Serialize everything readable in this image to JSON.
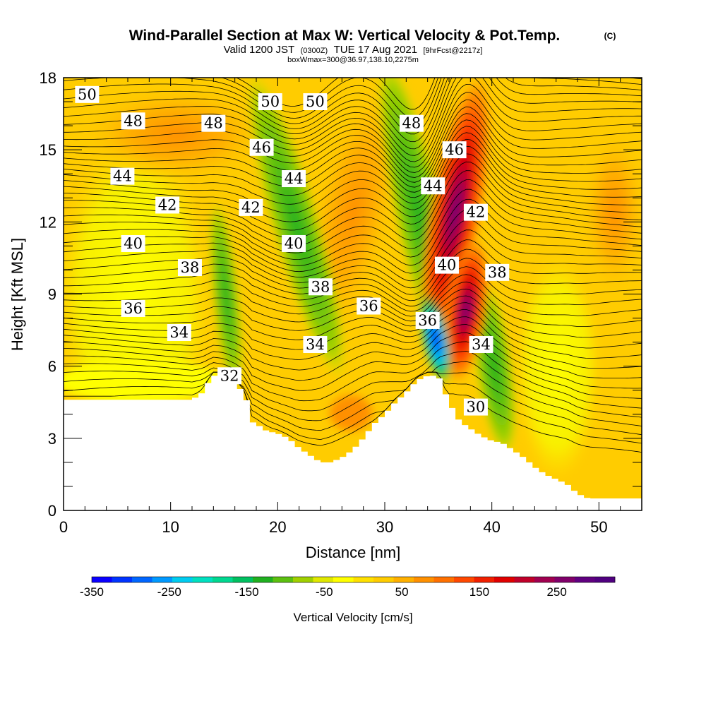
{
  "title": {
    "main": "Wind-Parallel Section at Max W: Vertical Velocity & Pot.Temp.",
    "copyright": "(C)",
    "valid_prefix": "Valid 1200 JST",
    "valid_utc": "(0300Z)",
    "valid_date": "TUE 17 Aug 2021",
    "forecast": "[9hrFcst@2217z]",
    "box": "boxWmax=300@36.97,138.10,2275m"
  },
  "chart_data": {
    "type": "heatmap",
    "xlabel": "Distance [nm]",
    "ylabel": "Height [Kft MSL]",
    "xlim": [
      0,
      54
    ],
    "ylim": [
      0,
      18
    ],
    "x_ticks": [
      0,
      10,
      20,
      30,
      40,
      50
    ],
    "y_ticks": [
      0,
      3,
      6,
      9,
      12,
      15,
      18
    ],
    "colorbar": {
      "label": "Vertical Velocity [cm/s]",
      "range": [
        -350,
        300
      ],
      "step": 25,
      "tick_values": [
        -350,
        -250,
        -150,
        -50,
        50,
        150,
        250
      ],
      "tick_labels": [
        "-350",
        "-250",
        "-150",
        "-50",
        "50",
        "150",
        "250"
      ],
      "colors": [
        "#0a00ff",
        "#0033ff",
        "#0066ff",
        "#0099ff",
        "#00ccf0",
        "#00e0c0",
        "#00d890",
        "#00c060",
        "#20b020",
        "#5cc010",
        "#a0d000",
        "#e0e800",
        "#ffff00",
        "#ffe000",
        "#ffcc00",
        "#ffb000",
        "#ff9000",
        "#ff7000",
        "#ff4800",
        "#f02000",
        "#e00000",
        "#c0002a",
        "#a00050",
        "#80006a",
        "#600080",
        "#500080"
      ]
    },
    "terrain_profile": {
      "x": [
        0,
        1,
        2,
        3,
        4,
        5,
        6,
        7,
        8,
        9,
        10,
        11,
        12,
        13,
        13.5,
        14,
        15,
        16,
        17,
        17.5,
        18,
        19,
        20,
        21,
        22,
        23,
        24,
        25,
        26,
        27,
        28,
        29,
        30,
        31,
        32,
        33,
        34,
        35,
        36,
        37,
        38,
        39,
        40,
        41,
        42,
        43,
        44,
        45,
        46,
        47,
        47.5,
        48,
        49,
        50,
        51,
        52,
        53,
        54
      ],
      "y": [
        4.6,
        4.6,
        4.6,
        4.6,
        4.6,
        4.6,
        4.6,
        4.6,
        4.6,
        4.6,
        4.6,
        4.6,
        4.6,
        4.9,
        5.3,
        5.6,
        5.6,
        5.3,
        4.8,
        3.7,
        3.6,
        3.3,
        3.2,
        3.0,
        2.6,
        2.3,
        2.0,
        2.0,
        2.2,
        2.5,
        3.0,
        3.6,
        4.0,
        4.5,
        4.9,
        5.4,
        5.6,
        5.6,
        4.5,
        3.7,
        3.4,
        3.1,
        2.9,
        2.8,
        2.5,
        2.2,
        1.8,
        1.5,
        1.3,
        1.1,
        0.9,
        0.7,
        0.5,
        0.5,
        0.5,
        0.5,
        0.5,
        0.5
      ]
    },
    "vertical_velocity_features": [
      {
        "name": "strong downdraft",
        "x": 34.5,
        "z": 6.8,
        "w": -350
      },
      {
        "name": "strong updraft",
        "x": 37.8,
        "z": 8.5,
        "w": 300
      },
      {
        "name": "updraft upper",
        "x": 37.0,
        "z": 13.0,
        "w": 175
      },
      {
        "name": "downdraft band",
        "x": 32.5,
        "z": 13.5,
        "w": -100
      },
      {
        "name": "downdraft band west",
        "x": 22.0,
        "z": 11.0,
        "w": -120
      },
      {
        "name": "updraft band west",
        "x": 25.5,
        "z": 13.0,
        "w": 110
      },
      {
        "name": "downdraft trailing",
        "x": 41.0,
        "z": 7.0,
        "w": -70
      }
    ],
    "isentrope_labels": [
      {
        "value": "50",
        "x": 2.2,
        "z": 17.3
      },
      {
        "value": "50",
        "x": 19.3,
        "z": 17.0
      },
      {
        "value": "50",
        "x": 23.5,
        "z": 17.0
      },
      {
        "value": "48",
        "x": 6.5,
        "z": 16.2
      },
      {
        "value": "48",
        "x": 14.0,
        "z": 16.1
      },
      {
        "value": "48",
        "x": 32.5,
        "z": 16.1
      },
      {
        "value": "46",
        "x": 18.5,
        "z": 15.1
      },
      {
        "value": "46",
        "x": 36.5,
        "z": 15.0
      },
      {
        "value": "44",
        "x": 5.5,
        "z": 13.9
      },
      {
        "value": "44",
        "x": 21.5,
        "z": 13.8
      },
      {
        "value": "44",
        "x": 34.5,
        "z": 13.5
      },
      {
        "value": "42",
        "x": 9.7,
        "z": 12.7
      },
      {
        "value": "42",
        "x": 17.5,
        "z": 12.6
      },
      {
        "value": "42",
        "x": 38.5,
        "z": 12.4
      },
      {
        "value": "40",
        "x": 6.5,
        "z": 11.1
      },
      {
        "value": "40",
        "x": 21.5,
        "z": 11.1
      },
      {
        "value": "40",
        "x": 35.8,
        "z": 10.2
      },
      {
        "value": "38",
        "x": 11.8,
        "z": 10.1
      },
      {
        "value": "38",
        "x": 24.0,
        "z": 9.3
      },
      {
        "value": "38",
        "x": 40.5,
        "z": 9.9
      },
      {
        "value": "36",
        "x": 6.5,
        "z": 8.4
      },
      {
        "value": "36",
        "x": 28.5,
        "z": 8.5
      },
      {
        "value": "36",
        "x": 34.0,
        "z": 7.9
      },
      {
        "value": "34",
        "x": 10.8,
        "z": 7.4
      },
      {
        "value": "34",
        "x": 23.5,
        "z": 6.9
      },
      {
        "value": "34",
        "x": 39.0,
        "z": 6.9
      },
      {
        "value": "32",
        "x": 15.5,
        "z": 5.6
      },
      {
        "value": "30",
        "x": 38.5,
        "z": 4.3
      }
    ]
  }
}
